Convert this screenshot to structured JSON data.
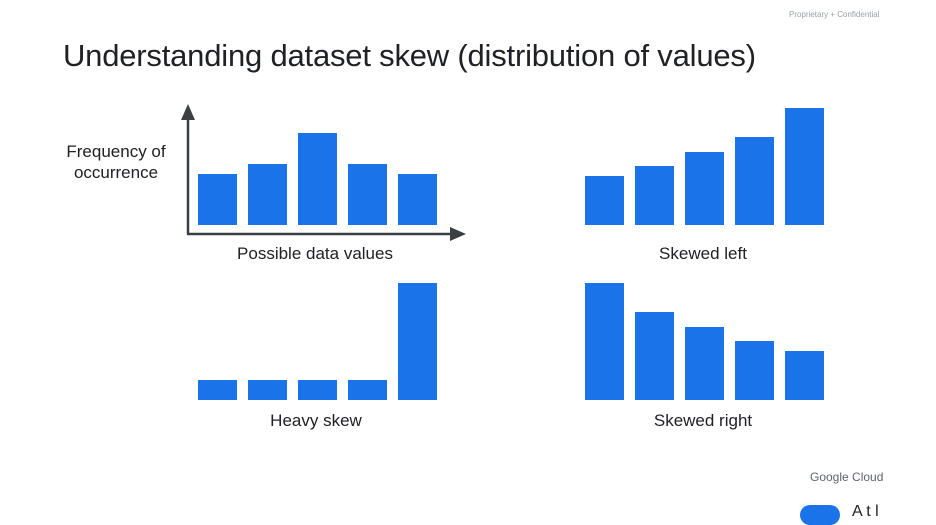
{
  "header": {
    "confidential": "Proprietary + Confidential",
    "title": "Understanding dataset skew (distribution of values)"
  },
  "colors": {
    "bar": "#1a73e8",
    "axis": "#3c4043",
    "text": "#202124",
    "muted": "#9aa0a6"
  },
  "chart_data": [
    {
      "type": "bar",
      "title": "",
      "ylabel": "Frequency of occurrence",
      "xlabel": "Possible data values",
      "values": [
        2,
        2.4,
        3.6,
        2.4,
        2
      ],
      "ylim": [
        0,
        4.6
      ],
      "axes_visible": true,
      "grid": false
    },
    {
      "type": "bar",
      "title": "",
      "xlabel": "Skewed left",
      "values": [
        2,
        2.4,
        3,
        3.6,
        4.8
      ],
      "ylim": [
        0,
        4.8
      ],
      "axes_visible": false,
      "grid": false
    },
    {
      "type": "bar",
      "title": "",
      "xlabel": "Heavy skew",
      "values": [
        0.8,
        0.8,
        0.8,
        0.8,
        4.8
      ],
      "ylim": [
        0,
        4.8
      ],
      "axes_visible": false,
      "grid": false
    },
    {
      "type": "bar",
      "title": "",
      "xlabel": "Skewed right",
      "values": [
        4.8,
        3.6,
        3,
        2.4,
        2
      ],
      "ylim": [
        0,
        4.8
      ],
      "axes_visible": false,
      "grid": false
    }
  ],
  "footer": {
    "brand_google": "Google",
    "brand_cloud": "Cloud",
    "corner_text": "A t l"
  }
}
